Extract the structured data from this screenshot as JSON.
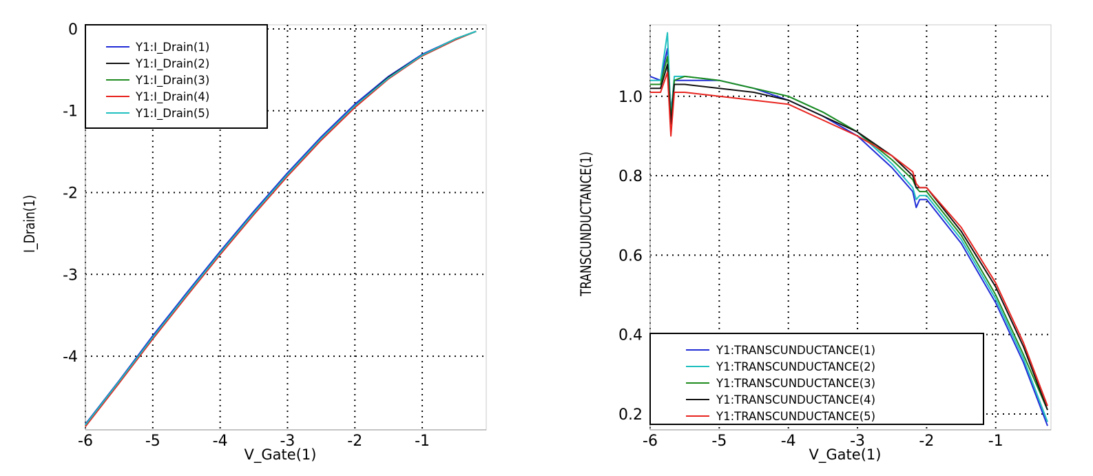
{
  "chart_data": [
    {
      "type": "line",
      "xlabel": "V_Gate(1)",
      "ylabel": "I_Drain(1)",
      "xlim": [
        -6.0,
        -0.05
      ],
      "ylim": [
        -4.9,
        0.05
      ],
      "xticks": [
        -6,
        -5,
        -4,
        -3,
        -2,
        -1
      ],
      "yticks": [
        0,
        -1,
        -2,
        -3,
        -4
      ],
      "xtick_labels": [
        "-6",
        "-5",
        "-4",
        "-3",
        "-2",
        "-1"
      ],
      "ytick_labels": [
        "0",
        "-1",
        "-2",
        "-3",
        "-4"
      ],
      "grid": true,
      "legend_position": "top-left",
      "x": [
        -6.0,
        -5.5,
        -5.0,
        -4.5,
        -4.0,
        -3.5,
        -3.0,
        -2.5,
        -2.0,
        -1.5,
        -1.0,
        -0.5,
        -0.2
      ],
      "series": [
        {
          "name": "Y1:I_Drain(1)",
          "color": "#1f2bd6",
          "values": [
            -4.83,
            -4.3,
            -3.75,
            -3.23,
            -2.72,
            -2.23,
            -1.76,
            -1.32,
            -0.92,
            -0.58,
            -0.31,
            -0.12,
            -0.03
          ]
        },
        {
          "name": "Y1:I_Drain(2)",
          "color": "#111111",
          "values": [
            -4.84,
            -4.31,
            -3.77,
            -3.25,
            -2.74,
            -2.25,
            -1.78,
            -1.34,
            -0.94,
            -0.59,
            -0.32,
            -0.12,
            -0.03
          ]
        },
        {
          "name": "Y1:I_Drain(3)",
          "color": "#1e8a1e",
          "values": [
            -4.85,
            -4.32,
            -3.78,
            -3.26,
            -2.75,
            -2.26,
            -1.79,
            -1.35,
            -0.95,
            -0.6,
            -0.33,
            -0.13,
            -0.03
          ]
        },
        {
          "name": "Y1:I_Drain(4)",
          "color": "#e8231e",
          "values": [
            -4.86,
            -4.33,
            -3.79,
            -3.27,
            -2.76,
            -2.27,
            -1.8,
            -1.36,
            -0.96,
            -0.61,
            -0.33,
            -0.13,
            -0.03
          ]
        },
        {
          "name": "Y1:I_Drain(5)",
          "color": "#1fbfbf",
          "values": [
            -4.84,
            -4.31,
            -3.77,
            -3.25,
            -2.74,
            -2.25,
            -1.78,
            -1.34,
            -0.94,
            -0.6,
            -0.32,
            -0.12,
            -0.03
          ]
        }
      ]
    },
    {
      "type": "line",
      "xlabel": "V_Gate(1)",
      "ylabel": "TRANSCUNDUCTANCE(1)",
      "xlim": [
        -6.0,
        -0.2
      ],
      "ylim": [
        0.16,
        1.18
      ],
      "xticks": [
        -6,
        -5,
        -4,
        -3,
        -2,
        -1
      ],
      "yticks": [
        1.0,
        0.8,
        0.6,
        0.4,
        0.2
      ],
      "xtick_labels": [
        "-6",
        "-5",
        "-4",
        "-3",
        "-2",
        "-1"
      ],
      "ytick_labels": [
        "1.0",
        "0.8",
        "0.6",
        "0.4",
        "0.2"
      ],
      "grid": true,
      "legend_position": "bottom-left",
      "x": [
        -6.0,
        -5.85,
        -5.75,
        -5.7,
        -5.65,
        -5.5,
        -5.0,
        -4.5,
        -4.0,
        -3.5,
        -3.0,
        -2.5,
        -2.2,
        -2.15,
        -2.1,
        -2.0,
        -1.5,
        -1.0,
        -0.6,
        -0.25
      ],
      "series": [
        {
          "name": "Y1:TRANSCUNDUCTANCE(1)",
          "color": "#1f2bd6",
          "values": [
            1.05,
            1.04,
            1.12,
            0.96,
            1.04,
            1.04,
            1.04,
            1.02,
            0.99,
            0.95,
            0.9,
            0.82,
            0.76,
            0.72,
            0.74,
            0.74,
            0.63,
            0.48,
            0.33,
            0.17
          ]
        },
        {
          "name": "Y1:TRANSCUNDUCTANCE(2)",
          "color": "#1fbfbf",
          "values": [
            1.04,
            1.04,
            1.16,
            0.95,
            1.05,
            1.05,
            1.04,
            1.02,
            1.0,
            0.96,
            0.91,
            0.83,
            0.77,
            0.74,
            0.75,
            0.75,
            0.64,
            0.49,
            0.34,
            0.18
          ]
        },
        {
          "name": "Y1:TRANSCUNDUCTANCE(3)",
          "color": "#1e8a1e",
          "values": [
            1.03,
            1.03,
            1.1,
            0.94,
            1.04,
            1.05,
            1.04,
            1.02,
            1.0,
            0.96,
            0.91,
            0.84,
            0.79,
            0.77,
            0.76,
            0.76,
            0.65,
            0.5,
            0.35,
            0.21
          ]
        },
        {
          "name": "Y1:TRANSCUNDUCTANCE(4)",
          "color": "#111111",
          "values": [
            1.02,
            1.02,
            1.08,
            0.93,
            1.03,
            1.03,
            1.02,
            1.01,
            0.99,
            0.95,
            0.91,
            0.85,
            0.8,
            0.77,
            0.77,
            0.77,
            0.66,
            0.52,
            0.37,
            0.21
          ]
        },
        {
          "name": "Y1:TRANSCUNDUCTANCE(5)",
          "color": "#e8231e",
          "values": [
            1.01,
            1.01,
            1.06,
            0.9,
            1.01,
            1.01,
            1.0,
            0.99,
            0.98,
            0.94,
            0.9,
            0.85,
            0.81,
            0.78,
            0.77,
            0.77,
            0.67,
            0.53,
            0.38,
            0.22
          ]
        }
      ]
    }
  ]
}
